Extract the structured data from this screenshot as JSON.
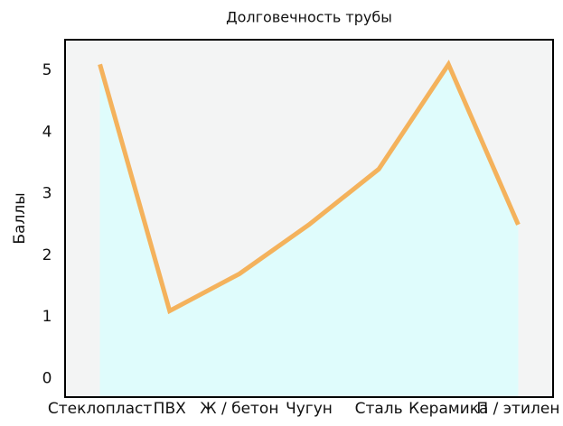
{
  "chart_data": {
    "type": "area",
    "title": "Долговечность трубы",
    "y_label": "Баллы",
    "categories": [
      "Стеклопласт",
      "ПВХ",
      "Ж / бетон",
      "Чугун",
      "Сталь",
      "Керамика",
      "П / этилен"
    ],
    "values": [
      5.1,
      1.1,
      1.7,
      2.5,
      3.4,
      5.1,
      2.5
    ],
    "line_color": "#f4b25c",
    "fill_color": "#dffcfc",
    "background": "#f3f4f4",
    "ylim": [
      -0.3,
      5.5
    ],
    "yticks": [
      0,
      1,
      2,
      3,
      4,
      5
    ],
    "grid": false
  }
}
